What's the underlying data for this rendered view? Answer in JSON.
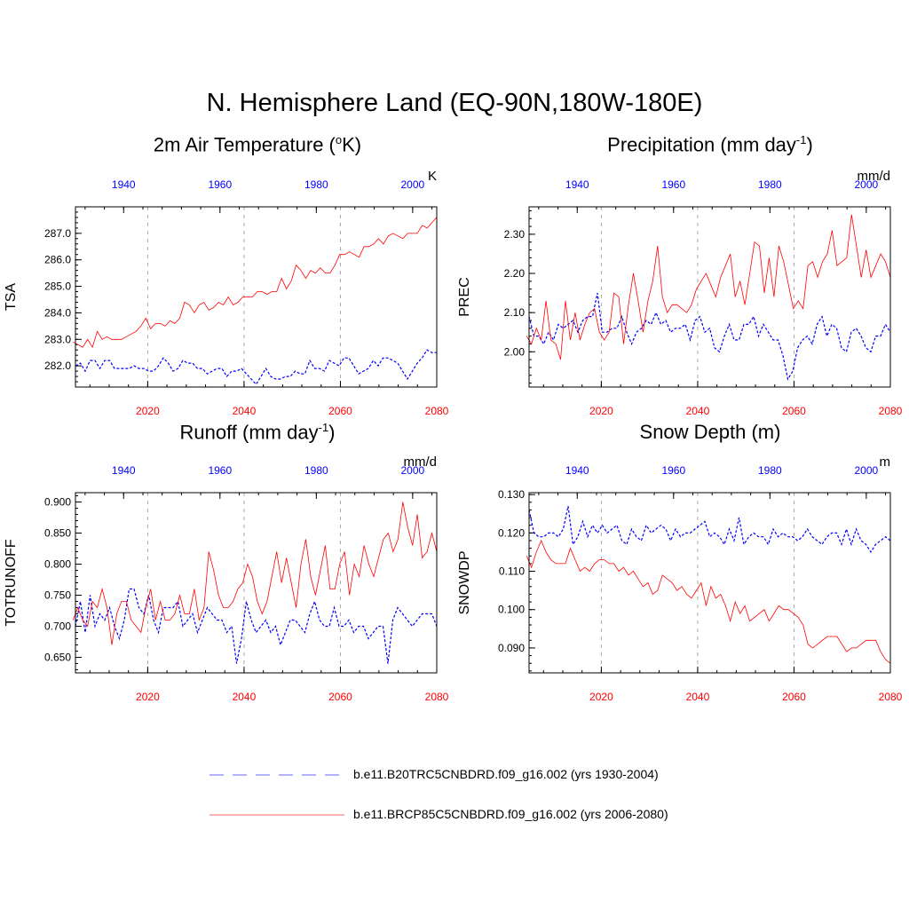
{
  "title": "N. Hemisphere Land (EQ-90N,180W-180E)",
  "colors": {
    "hist": "#0000ff",
    "future": "#ff0000",
    "grid": "#aaaaaa"
  },
  "legend": [
    {
      "name": "b.e11.B20TRC5CNBDRD.f09_g16.002 (yrs 1930-2004)",
      "style": "dashed",
      "color": "#0000ff"
    },
    {
      "name": "b.e11.BRCP85C5CNBDRD.f09_g16.002 (yrs 2006-2080)",
      "style": "solid",
      "color": "#ff0000"
    }
  ],
  "chart_data": [
    {
      "type": "line",
      "title": "2m Air Temperature (",
      "title_sup": "o",
      "title_end": "K)",
      "ylabel": "TSA",
      "units": "K",
      "ylim": [
        281.2,
        288.0
      ],
      "yticks": [
        282.0,
        283.0,
        284.0,
        285.0,
        286.0,
        287.0
      ],
      "ytick_labels": [
        "282.0",
        "283.0",
        "284.0",
        "285.0",
        "286.0",
        "287.0"
      ],
      "bottom_ticks": [
        "2020",
        "2040",
        "2060",
        "2080"
      ],
      "top_ticks": [
        "1940",
        "1960",
        "1980",
        "2000"
      ],
      "series": [
        {
          "name": "hist",
          "values": [
            282.0,
            282.1,
            281.8,
            282.2,
            282.2,
            281.9,
            282.2,
            282.2,
            281.9,
            281.9,
            281.9,
            281.9,
            282.0,
            281.9,
            281.9,
            281.8,
            281.8,
            282.0,
            282.3,
            282.1,
            281.8,
            281.9,
            282.2,
            282.1,
            282.1,
            281.9,
            281.9,
            281.7,
            281.8,
            281.9,
            281.9,
            281.6,
            281.8,
            281.8,
            281.9,
            281.7,
            281.5,
            281.3,
            281.6,
            281.9,
            281.6,
            281.5,
            281.5,
            281.6,
            281.6,
            281.8,
            281.7,
            281.7,
            282.2,
            281.9,
            281.9,
            281.8,
            282.2,
            282.1,
            282.0,
            282.3,
            282.3,
            282.0,
            281.7,
            281.8,
            281.9,
            282.2,
            282.0,
            282.3,
            282.3,
            282.2,
            282.1,
            281.8,
            281.5,
            281.8,
            282.1,
            282.3,
            282.6,
            282.5,
            282.5
          ]
        },
        {
          "name": "future",
          "values": [
            282.9,
            282.8,
            282.7,
            283.0,
            282.7,
            283.3,
            283.0,
            283.1,
            283.0,
            283.0,
            283.0,
            283.1,
            283.2,
            283.3,
            283.5,
            283.8,
            283.4,
            283.6,
            283.6,
            283.5,
            283.7,
            283.6,
            283.8,
            284.4,
            284.3,
            284.0,
            284.3,
            284.4,
            284.1,
            284.2,
            284.4,
            284.3,
            284.6,
            284.3,
            284.4,
            284.6,
            284.6,
            284.6,
            284.8,
            284.8,
            284.7,
            284.8,
            284.8,
            285.3,
            284.9,
            285.2,
            285.8,
            285.6,
            285.3,
            285.6,
            285.5,
            285.7,
            285.5,
            285.5,
            285.8,
            286.2,
            286.2,
            286.3,
            286.2,
            286.1,
            286.5,
            286.5,
            286.6,
            286.8,
            286.6,
            286.9,
            287.0,
            286.9,
            286.8,
            287.0,
            287.0,
            287.0,
            287.3,
            287.2,
            287.4,
            287.6
          ]
        }
      ]
    },
    {
      "type": "line",
      "title": "Precipitation (mm day",
      "title_sup": "-1",
      "title_end": ")",
      "ylabel": "PREC",
      "units": "mm/d",
      "ylim": [
        1.91,
        2.37
      ],
      "yticks": [
        2.0,
        2.1,
        2.2,
        2.3
      ],
      "ytick_labels": [
        "2.00",
        "2.10",
        "2.20",
        "2.30"
      ],
      "bottom_ticks": [
        "2020",
        "2040",
        "2060",
        "2080"
      ],
      "top_ticks": [
        "1940",
        "1960",
        "1980",
        "2000"
      ],
      "series": [
        {
          "name": "hist",
          "values": [
            2.09,
            2.04,
            2.04,
            2.02,
            2.05,
            2.03,
            2.07,
            2.06,
            2.07,
            2.08,
            2.05,
            2.08,
            2.09,
            2.09,
            2.15,
            2.05,
            2.05,
            2.06,
            2.06,
            2.09,
            2.05,
            2.02,
            2.05,
            2.06,
            2.08,
            2.07,
            2.1,
            2.07,
            2.08,
            2.05,
            2.06,
            2.06,
            2.07,
            2.03,
            2.08,
            2.09,
            2.05,
            2.06,
            2.01,
            2.0,
            2.04,
            2.07,
            2.03,
            2.03,
            2.07,
            2.07,
            2.09,
            2.04,
            2.07,
            2.05,
            2.03,
            2.03,
            1.99,
            1.93,
            1.95,
            2.01,
            2.03,
            2.04,
            2.02,
            2.07,
            2.09,
            2.04,
            2.07,
            2.06,
            2.01,
            2.0,
            2.05,
            2.06,
            2.04,
            2.01,
            2.0,
            2.04,
            2.04,
            2.07,
            2.05
          ]
        },
        {
          "name": "future",
          "values": [
            2.04,
            2.02,
            2.06,
            2.03,
            2.13,
            2.03,
            2.02,
            1.98,
            2.13,
            2.03,
            2.1,
            2.03,
            2.07,
            2.1,
            2.11,
            2.05,
            2.03,
            2.05,
            2.15,
            2.14,
            2.02,
            2.12,
            2.2,
            2.13,
            2.05,
            2.13,
            2.18,
            2.27,
            2.14,
            2.1,
            2.12,
            2.12,
            2.11,
            2.1,
            2.12,
            2.16,
            2.18,
            2.2,
            2.17,
            2.14,
            2.19,
            2.22,
            2.25,
            2.14,
            2.18,
            2.12,
            2.2,
            2.28,
            2.27,
            2.15,
            2.24,
            2.14,
            2.27,
            2.23,
            2.17,
            2.11,
            2.13,
            2.11,
            2.22,
            2.23,
            2.19,
            2.23,
            2.25,
            2.31,
            2.22,
            2.23,
            2.24,
            2.35,
            2.27,
            2.19,
            2.26,
            2.19,
            2.22,
            2.25,
            2.23,
            2.19
          ]
        }
      ]
    },
    {
      "type": "line",
      "title": "Runoff (mm day",
      "title_sup": "-1",
      "title_end": ")",
      "ylabel": "TOTRUNOFF",
      "units": "mm/d",
      "ylim": [
        0.625,
        0.915
      ],
      "yticks": [
        0.65,
        0.7,
        0.75,
        0.8,
        0.85,
        0.9
      ],
      "ytick_labels": [
        "0.650",
        "0.700",
        "0.750",
        "0.800",
        "0.850",
        "0.900"
      ],
      "bottom_ticks": [
        "2020",
        "2040",
        "2060",
        "2080"
      ],
      "top_ticks": [
        "1940",
        "1960",
        "1980",
        "2000"
      ],
      "series": [
        {
          "name": "hist",
          "values": [
            0.7,
            0.74,
            0.69,
            0.75,
            0.7,
            0.72,
            0.71,
            0.73,
            0.7,
            0.68,
            0.71,
            0.76,
            0.76,
            0.73,
            0.72,
            0.75,
            0.71,
            0.69,
            0.73,
            0.73,
            0.73,
            0.74,
            0.7,
            0.71,
            0.72,
            0.69,
            0.71,
            0.73,
            0.72,
            0.71,
            0.71,
            0.69,
            0.7,
            0.64,
            0.68,
            0.74,
            0.71,
            0.69,
            0.7,
            0.71,
            0.69,
            0.7,
            0.67,
            0.69,
            0.71,
            0.71,
            0.7,
            0.69,
            0.72,
            0.74,
            0.71,
            0.7,
            0.7,
            0.73,
            0.7,
            0.7,
            0.71,
            0.69,
            0.7,
            0.7,
            0.68,
            0.69,
            0.7,
            0.7,
            0.64,
            0.71,
            0.73,
            0.72,
            0.71,
            0.7,
            0.71,
            0.72,
            0.72,
            0.72,
            0.7
          ]
        },
        {
          "name": "future",
          "values": [
            0.71,
            0.73,
            0.71,
            0.7,
            0.74,
            0.73,
            0.76,
            0.73,
            0.67,
            0.72,
            0.74,
            0.74,
            0.71,
            0.7,
            0.69,
            0.73,
            0.76,
            0.71,
            0.74,
            0.71,
            0.71,
            0.72,
            0.75,
            0.72,
            0.72,
            0.76,
            0.71,
            0.73,
            0.82,
            0.79,
            0.75,
            0.73,
            0.73,
            0.74,
            0.76,
            0.77,
            0.8,
            0.78,
            0.74,
            0.72,
            0.74,
            0.78,
            0.82,
            0.77,
            0.81,
            0.77,
            0.73,
            0.8,
            0.84,
            0.78,
            0.75,
            0.79,
            0.83,
            0.76,
            0.76,
            0.8,
            0.82,
            0.75,
            0.8,
            0.78,
            0.83,
            0.8,
            0.78,
            0.81,
            0.84,
            0.85,
            0.82,
            0.84,
            0.9,
            0.86,
            0.83,
            0.88,
            0.81,
            0.82,
            0.85,
            0.82
          ]
        }
      ]
    },
    {
      "type": "line",
      "title": "Snow Depth (m)",
      "title_sup": "",
      "title_end": "",
      "ylabel": "SNOWDP",
      "units": "m",
      "ylim": [
        0.0835,
        0.1305
      ],
      "yticks": [
        0.09,
        0.1,
        0.11,
        0.12,
        0.13
      ],
      "ytick_labels": [
        "0.090",
        "0.100",
        "0.110",
        "0.120",
        "0.130"
      ],
      "bottom_ticks": [
        "2020",
        "2040",
        "2060",
        "2080"
      ],
      "top_ticks": [
        "1940",
        "1960",
        "1980",
        "2000"
      ],
      "series": [
        {
          "name": "hist",
          "values": [
            0.126,
            0.12,
            0.119,
            0.119,
            0.12,
            0.12,
            0.119,
            0.121,
            0.127,
            0.117,
            0.119,
            0.123,
            0.119,
            0.122,
            0.12,
            0.122,
            0.12,
            0.121,
            0.122,
            0.118,
            0.117,
            0.121,
            0.119,
            0.118,
            0.122,
            0.12,
            0.121,
            0.122,
            0.121,
            0.118,
            0.121,
            0.119,
            0.12,
            0.12,
            0.121,
            0.122,
            0.123,
            0.119,
            0.12,
            0.119,
            0.117,
            0.121,
            0.118,
            0.124,
            0.117,
            0.119,
            0.12,
            0.119,
            0.119,
            0.117,
            0.121,
            0.119,
            0.12,
            0.119,
            0.119,
            0.118,
            0.119,
            0.121,
            0.119,
            0.118,
            0.117,
            0.119,
            0.12,
            0.12,
            0.117,
            0.121,
            0.117,
            0.121,
            0.118,
            0.117,
            0.115,
            0.117,
            0.118,
            0.119,
            0.118
          ]
        },
        {
          "name": "future",
          "values": [
            0.114,
            0.111,
            0.115,
            0.118,
            0.115,
            0.113,
            0.112,
            0.112,
            0.112,
            0.116,
            0.113,
            0.11,
            0.111,
            0.11,
            0.112,
            0.113,
            0.113,
            0.112,
            0.112,
            0.11,
            0.111,
            0.109,
            0.11,
            0.108,
            0.106,
            0.107,
            0.104,
            0.105,
            0.109,
            0.108,
            0.107,
            0.105,
            0.106,
            0.104,
            0.103,
            0.105,
            0.107,
            0.101,
            0.106,
            0.103,
            0.104,
            0.101,
            0.097,
            0.102,
            0.099,
            0.101,
            0.097,
            0.098,
            0.099,
            0.1,
            0.097,
            0.099,
            0.101,
            0.1,
            0.1,
            0.099,
            0.098,
            0.096,
            0.091,
            0.09,
            0.091,
            0.092,
            0.093,
            0.093,
            0.093,
            0.091,
            0.089,
            0.09,
            0.09,
            0.091,
            0.092,
            0.092,
            0.092,
            0.089,
            0.087,
            0.086
          ]
        }
      ]
    }
  ]
}
